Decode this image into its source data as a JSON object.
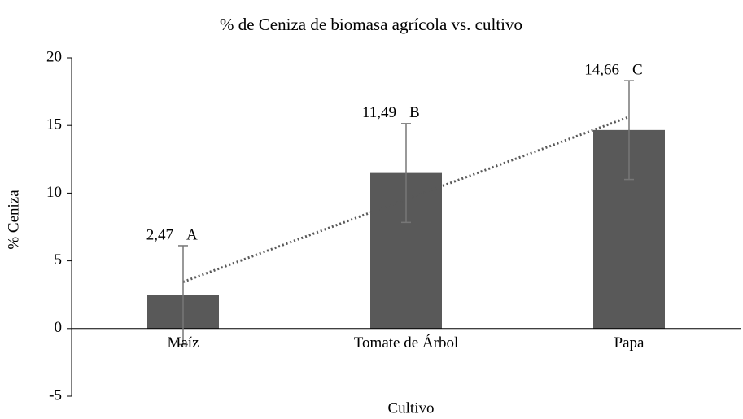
{
  "chart_data": {
    "type": "bar",
    "title": "% de Ceniza de biomasa agrícola vs. cultivo",
    "x_label": "Cultivo",
    "y_label": "% Ceniza",
    "categories": [
      "Maíz",
      "Tomate de Árbol",
      "Papa"
    ],
    "values": [
      2.47,
      11.49,
      14.66
    ],
    "value_labels": [
      "2,47",
      "11,49",
      "14,66"
    ],
    "errors": [
      3.65,
      3.65,
      3.65
    ],
    "letters": [
      "A",
      "B",
      "C"
    ],
    "color": "#595959",
    "trendline": "linear",
    "ylim": [
      -5,
      20
    ],
    "yticks": [
      -5,
      0,
      5,
      10,
      15,
      20
    ]
  }
}
